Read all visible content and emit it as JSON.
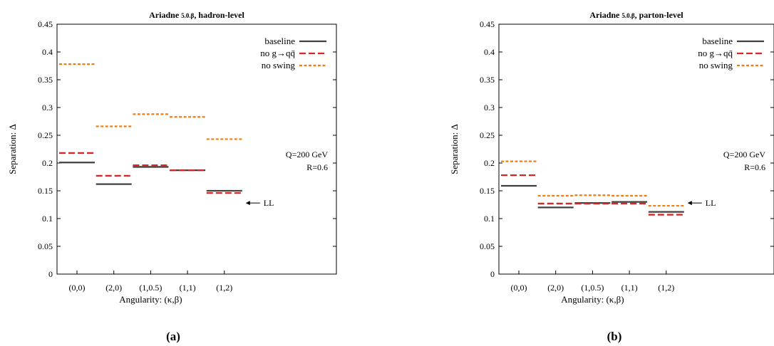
{
  "chart_data": [
    {
      "type": "line",
      "title": "Ariadne",
      "title_version": "5.0.β",
      "title_suffix": ", hadron-level",
      "xlabel": "Angularity: (κ,β)",
      "ylabel": "Separation: Δ",
      "categories": [
        "(0,0)",
        "(2,0)",
        "(1,0.5)",
        "(1,1)",
        "(1,2)"
      ],
      "ylim": [
        0,
        0.45
      ],
      "yticks": [
        "0",
        "0.05",
        "0.1",
        "0.15",
        "0.2",
        "0.25",
        "0.3",
        "0.35",
        "0.4",
        "0.45"
      ],
      "series": [
        {
          "name": "baseline",
          "color": "#404040",
          "style": "solid",
          "values": [
            0.201,
            0.162,
            0.193,
            0.187,
            0.15
          ]
        },
        {
          "name": "no g→qq̄",
          "color": "#d62728",
          "style": "dashed",
          "values": [
            0.218,
            0.177,
            0.196,
            0.187,
            0.146
          ]
        },
        {
          "name": "no swing",
          "color": "#f07d12",
          "style": "dotted",
          "values": [
            0.378,
            0.266,
            0.288,
            0.283,
            0.243
          ]
        }
      ],
      "annotations": {
        "energy": "Q=200 GeV",
        "radius": "R=0.6",
        "ll": "LL",
        "ll_value": 0.128
      },
      "subfigure": "(a)"
    },
    {
      "type": "line",
      "title": "Ariadne",
      "title_version": "5.0.β",
      "title_suffix": ", parton-level",
      "xlabel": "Angularity: (κ,β)",
      "ylabel": "Separation: Δ",
      "categories": [
        "(0,0)",
        "(2,0)",
        "(1,0.5)",
        "(1,1)",
        "(1,2)"
      ],
      "ylim": [
        0,
        0.45
      ],
      "yticks": [
        "0",
        "0.05",
        "0.1",
        "0.15",
        "0.2",
        "0.25",
        "0.3",
        "0.35",
        "0.4",
        "0.45"
      ],
      "series": [
        {
          "name": "baseline",
          "color": "#404040",
          "style": "solid",
          "values": [
            0.159,
            0.12,
            0.128,
            0.13,
            0.112
          ]
        },
        {
          "name": "no g→qq̄",
          "color": "#d62728",
          "style": "dashed",
          "values": [
            0.178,
            0.127,
            0.127,
            0.127,
            0.107
          ]
        },
        {
          "name": "no swing",
          "color": "#f07d12",
          "style": "dotted",
          "values": [
            0.203,
            0.141,
            0.142,
            0.141,
            0.123
          ]
        }
      ],
      "annotations": {
        "energy": "Q=200 GeV",
        "radius": "R=0.6",
        "ll": "LL",
        "ll_value": 0.128
      },
      "subfigure": "(b)"
    }
  ]
}
